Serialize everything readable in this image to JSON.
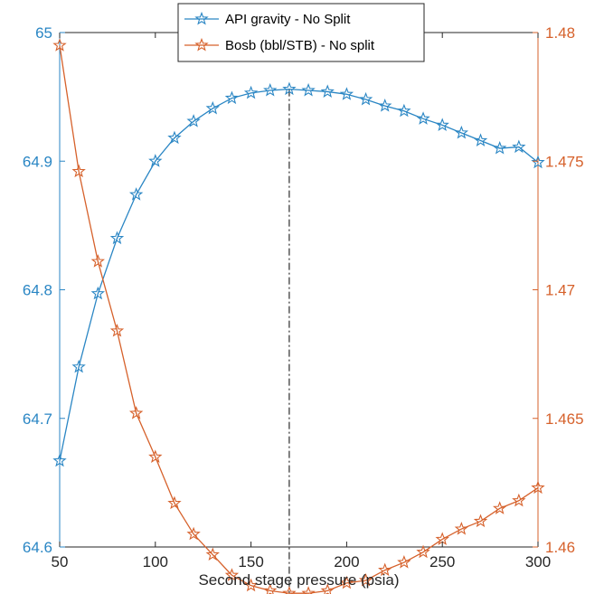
{
  "chart_data": {
    "type": "line",
    "xlabel": "Second stage pressure (psia)",
    "xlim": [
      50,
      300
    ],
    "xticks": [
      50,
      100,
      150,
      200,
      250,
      300
    ],
    "x": [
      50,
      60,
      70,
      80,
      90,
      100,
      110,
      120,
      130,
      140,
      150,
      160,
      170,
      180,
      190,
      200,
      210,
      220,
      230,
      240,
      250,
      260,
      270,
      280,
      290,
      300
    ],
    "series": [
      {
        "name": "API gravity - No Split",
        "axis": "left",
        "color": "#2a86c4",
        "marker": "star",
        "values": [
          64.667,
          64.74,
          64.797,
          64.84,
          64.874,
          64.9,
          64.918,
          64.931,
          64.941,
          64.949,
          64.953,
          64.955,
          64.956,
          64.955,
          64.954,
          64.952,
          64.948,
          64.943,
          64.939,
          64.933,
          64.928,
          64.922,
          64.916,
          64.91,
          64.911,
          64.899
        ]
      },
      {
        "name": "Bosb (bbl/STB) - No split",
        "axis": "right",
        "color": "#d6612b",
        "marker": "star",
        "values": [
          1.4795,
          1.4746,
          1.4711,
          1.4684,
          1.4652,
          1.4635,
          1.4617,
          1.4605,
          1.4597,
          1.4589,
          1.4585,
          1.4583,
          1.4582,
          1.4582,
          1.4583,
          1.4586,
          1.4587,
          1.4591,
          1.4594,
          1.4598,
          1.4603,
          1.4607,
          1.461,
          1.4615,
          1.4618,
          1.4623
        ]
      }
    ],
    "y_left": {
      "ylim": [
        64.6,
        65.0
      ],
      "ticks": [
        "64.6",
        "64.7",
        "64.8",
        "64.9",
        "65"
      ]
    },
    "y_right": {
      "ylim": [
        1.46,
        1.48
      ],
      "ticks": [
        "1.46",
        "1.465",
        "1.47",
        "1.475",
        "1.48"
      ]
    },
    "vertical_reference_line": {
      "x": 170,
      "style": "dash-dot",
      "color": "#000000"
    },
    "legend": {
      "position": "top-center"
    },
    "grid": false
  }
}
